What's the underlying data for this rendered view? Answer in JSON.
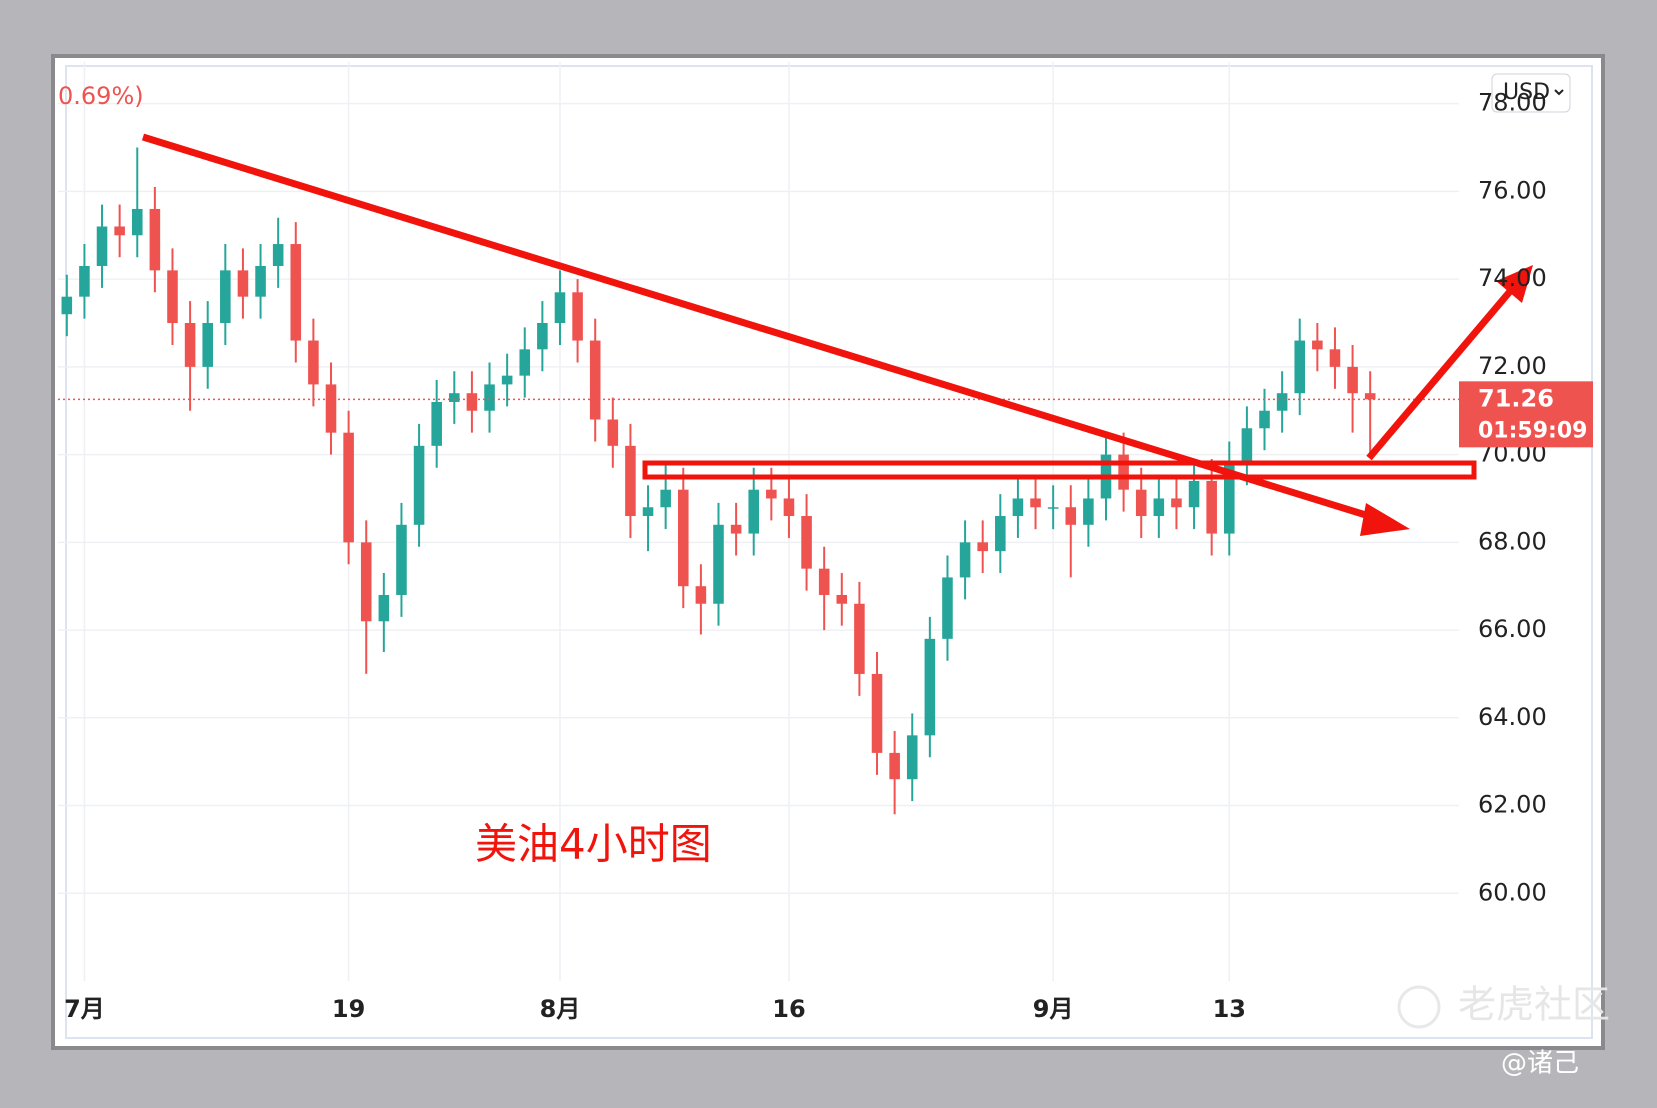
{
  "chart_data": {
    "type": "candlestick",
    "change_label": "0.69%)",
    "currency": "USD",
    "annotation": "美油4小时图",
    "watermark": "老虎社区",
    "author": "@诸己",
    "last_price": 71.26,
    "countdown": "01:59:09",
    "up_color": "#26a69a",
    "down_color": "#ef5350",
    "grid": true,
    "ylim": [
      58.0,
      78.95
    ],
    "yticks": [
      {
        "value": 60,
        "label": "60.00"
      },
      {
        "value": 62,
        "label": "62.00"
      },
      {
        "value": 64,
        "label": "64.00"
      },
      {
        "value": 66,
        "label": "66.00"
      },
      {
        "value": 68,
        "label": "68.00"
      },
      {
        "value": 70,
        "label": "70.00"
      },
      {
        "value": 72,
        "label": "72.00"
      },
      {
        "value": 74,
        "label": "74.00"
      },
      {
        "value": 76,
        "label": "76.00"
      },
      {
        "value": 78,
        "label": "78.00"
      }
    ],
    "categories": [
      null,
      "7月",
      null,
      null,
      null,
      null,
      null,
      null,
      null,
      null,
      null,
      null,
      null,
      null,
      null,
      null,
      "19",
      null,
      null,
      null,
      null,
      null,
      null,
      null,
      null,
      null,
      null,
      null,
      "8月",
      null,
      null,
      null,
      null,
      null,
      null,
      null,
      null,
      null,
      null,
      null,
      null,
      "16",
      null,
      null,
      null,
      null,
      null,
      null,
      null,
      null,
      null,
      null,
      null,
      null,
      null,
      null,
      "9月",
      null,
      null,
      null,
      null,
      null,
      null,
      null,
      null,
      null,
      "13",
      null,
      null,
      null,
      null,
      null,
      null,
      null,
      null
    ],
    "open": [
      73.2,
      73.6,
      74.3,
      75.2,
      75.0,
      75.6,
      74.2,
      73.0,
      72.0,
      73.0,
      74.2,
      73.6,
      74.3,
      74.8,
      72.6,
      71.6,
      70.5,
      68.0,
      66.2,
      66.8,
      68.4,
      70.2,
      71.2,
      71.4,
      71.0,
      71.6,
      71.8,
      72.4,
      73.0,
      73.7,
      72.6,
      70.8,
      70.2,
      68.6,
      68.8,
      69.2,
      67.0,
      66.6,
      68.4,
      68.2,
      69.2,
      69.0,
      68.6,
      67.4,
      66.8,
      66.6,
      65.0,
      63.2,
      62.6,
      63.6,
      65.8,
      67.2,
      68.0,
      67.8,
      68.6,
      69.0,
      68.8,
      68.8,
      68.4,
      69.0,
      70.0,
      69.2,
      68.6,
      69.0,
      68.8,
      69.4,
      68.2,
      69.8,
      70.6,
      71.0,
      71.4,
      72.6,
      72.4,
      72.0,
      71.4
    ],
    "high": [
      74.1,
      74.8,
      75.7,
      75.7,
      77.0,
      76.1,
      74.7,
      73.5,
      73.5,
      74.8,
      74.7,
      74.8,
      75.4,
      75.3,
      73.1,
      72.1,
      71.0,
      68.5,
      67.3,
      68.9,
      70.7,
      71.7,
      71.9,
      71.9,
      72.1,
      72.3,
      72.9,
      73.5,
      74.2,
      74.0,
      73.1,
      71.3,
      70.7,
      69.3,
      69.8,
      69.7,
      67.5,
      68.9,
      68.9,
      69.7,
      69.7,
      69.5,
      69.1,
      67.9,
      67.3,
      67.1,
      65.5,
      63.7,
      64.1,
      66.3,
      67.7,
      68.5,
      68.5,
      69.1,
      69.5,
      69.5,
      69.3,
      69.3,
      69.5,
      70.5,
      70.5,
      69.7,
      69.5,
      69.5,
      69.9,
      69.9,
      70.3,
      71.1,
      71.5,
      71.9,
      73.1,
      73.0,
      72.9,
      72.5,
      71.9
    ],
    "low": [
      72.7,
      73.1,
      73.8,
      74.5,
      74.5,
      73.7,
      72.5,
      71.0,
      71.5,
      72.5,
      73.1,
      73.1,
      73.8,
      72.1,
      71.1,
      70.0,
      67.5,
      65.0,
      65.5,
      66.3,
      67.9,
      69.7,
      70.7,
      70.5,
      70.5,
      71.1,
      71.3,
      71.9,
      72.5,
      72.1,
      70.3,
      69.7,
      68.1,
      67.8,
      68.3,
      66.5,
      65.9,
      66.1,
      67.7,
      67.7,
      68.5,
      68.1,
      66.9,
      66.0,
      66.1,
      64.5,
      62.7,
      61.8,
      62.1,
      63.1,
      65.3,
      66.7,
      67.3,
      67.3,
      68.1,
      68.3,
      68.3,
      67.2,
      67.9,
      68.5,
      68.7,
      68.1,
      68.1,
      68.3,
      68.3,
      67.7,
      67.7,
      69.3,
      70.1,
      70.5,
      70.9,
      71.9,
      71.5,
      70.5,
      70.0
    ],
    "close": [
      73.6,
      74.3,
      75.2,
      75.0,
      75.6,
      74.2,
      73.0,
      72.0,
      73.0,
      74.2,
      73.6,
      74.3,
      74.8,
      72.6,
      71.6,
      70.5,
      68.0,
      66.2,
      66.8,
      68.4,
      70.2,
      71.2,
      71.4,
      71.0,
      71.6,
      71.8,
      72.4,
      73.0,
      73.7,
      72.6,
      70.8,
      70.2,
      68.6,
      68.8,
      69.2,
      67.0,
      66.6,
      68.4,
      68.2,
      69.2,
      69.0,
      68.6,
      67.4,
      66.8,
      66.6,
      65.0,
      63.2,
      62.6,
      63.6,
      65.8,
      67.2,
      68.0,
      67.8,
      68.6,
      69.0,
      68.8,
      68.8,
      68.4,
      69.0,
      70.0,
      69.2,
      68.6,
      69.0,
      68.8,
      69.4,
      68.2,
      69.8,
      70.6,
      71.0,
      71.4,
      72.6,
      72.4,
      72.0,
      71.4,
      71.26
    ]
  }
}
